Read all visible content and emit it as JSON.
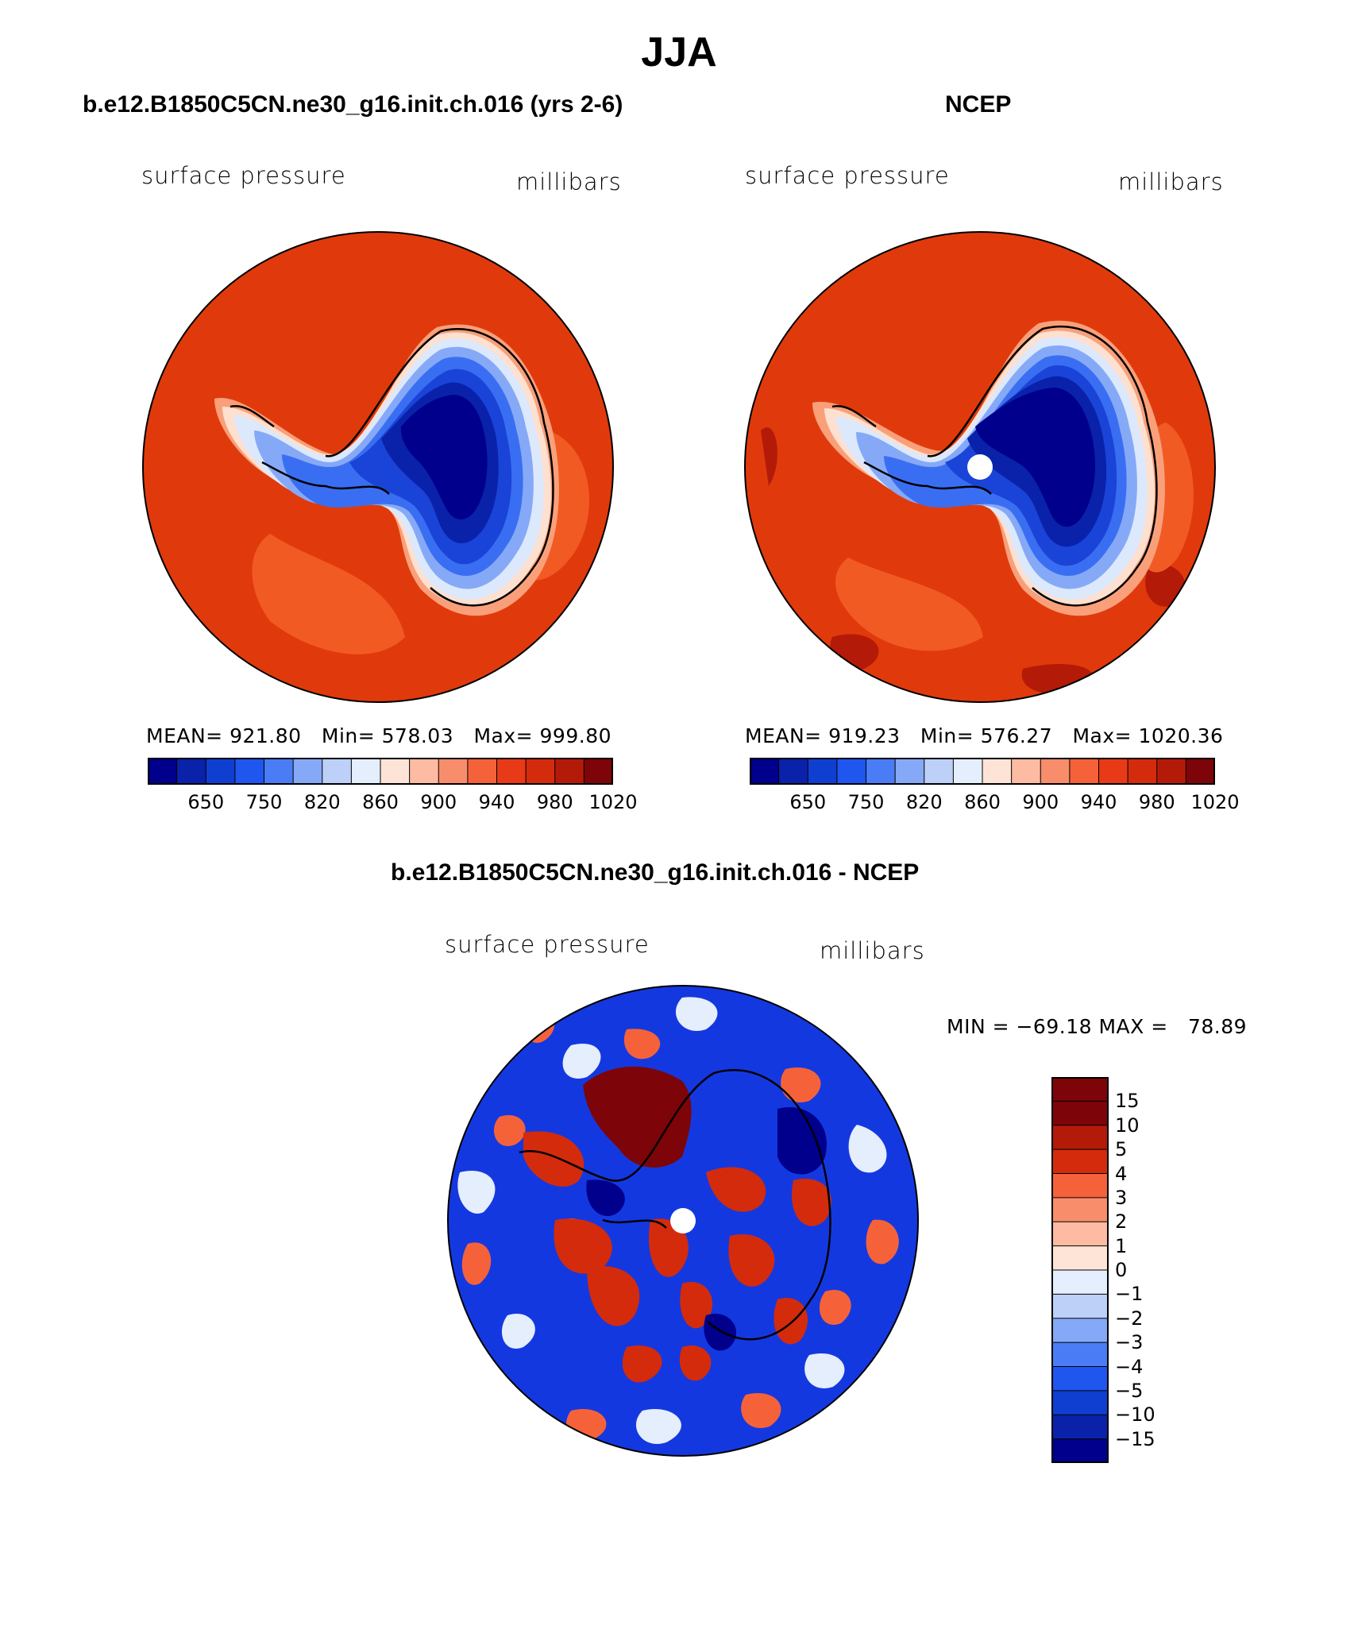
{
  "figure": {
    "title": "JJA"
  },
  "panels": {
    "left": {
      "title": "b.e12.B1850C5CN.ne30_g16.init.ch.016 (yrs 2-6)",
      "variable": "surface pressure",
      "units": "millibars",
      "stats": "MEAN= 921.80   Min= 578.03   Max= 999.80"
    },
    "right": {
      "title": "NCEP",
      "variable": "surface pressure",
      "units": "millibars",
      "stats": "MEAN= 919.23   Min= 576.27   Max= 1020.36"
    },
    "diff": {
      "title": "b.e12.B1850C5CN.ne30_g16.init.ch.016 - NCEP",
      "variable": "surface pressure",
      "units": "millibars",
      "stats": "MIN = −69.18 MAX =   78.89"
    }
  },
  "colorbar_main": {
    "colors": [
      "#00008c",
      "#0a22aa",
      "#0f3fd1",
      "#1f56f0",
      "#4a7df5",
      "#86a9f7",
      "#bcd0f8",
      "#e4eefc",
      "#fde4d7",
      "#fcbba2",
      "#f88d6c",
      "#f5623a",
      "#e83a16",
      "#d42b0c",
      "#b41a08",
      "#7d0408"
    ],
    "labels": [
      "650",
      "750",
      "820",
      "860",
      "900",
      "940",
      "980",
      "1020"
    ]
  },
  "colorbar_diff": {
    "colors": [
      "#7d0408",
      "#b41a08",
      "#d42b0c",
      "#f5623a",
      "#f88d6c",
      "#fcbba2",
      "#fde4d7",
      "#e4eefc",
      "#bcd0f8",
      "#86a9f7",
      "#4a7df5",
      "#1f56f0",
      "#0f3fd1",
      "#0a22aa",
      "#00008c"
    ],
    "labels": [
      "15",
      "10",
      "5",
      "4",
      "3",
      "2",
      "1",
      "0",
      "−1",
      "−2",
      "−3",
      "−4",
      "−5",
      "−10",
      "−15"
    ]
  },
  "map_colors": {
    "ocean_high": "#e03a0c",
    "ocean_mid": "#f25a24",
    "coast_light": "#f9a07a",
    "coast_pale": "#fde0d0",
    "ice_edge": "#dce8fc",
    "ice_1": "#86a9f7",
    "ice_2": "#3a6ef2",
    "ice_3": "#1a44d8",
    "ice_4": "#0a22aa",
    "ice_core": "#00008c",
    "dark_red": "#b41a08",
    "diff_blue": "#1438e0",
    "diff_red": "#d42b0c"
  }
}
